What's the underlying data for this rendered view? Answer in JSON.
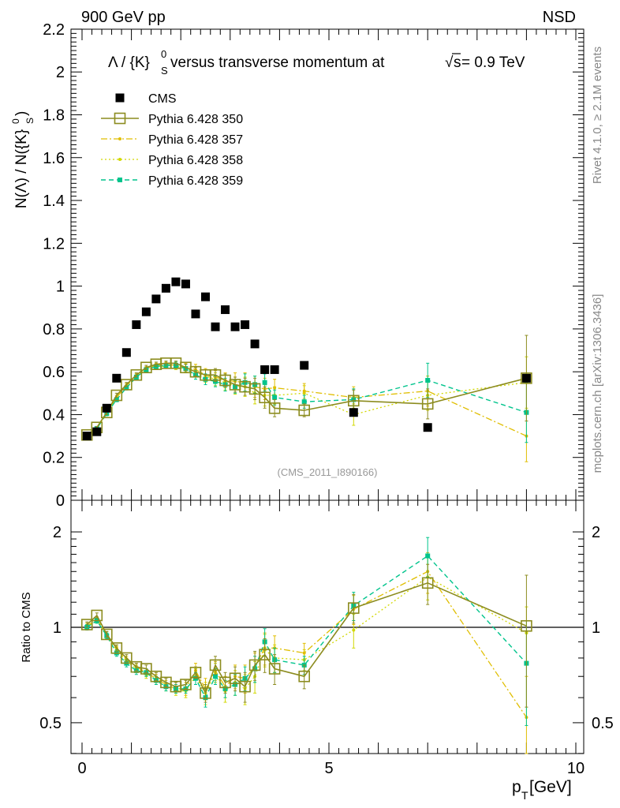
{
  "header": {
    "left_label": "900 GeV pp",
    "right_label": "NSD"
  },
  "side": {
    "rivet_label": "Rivet 4.1.0, ≥ 2.1M events",
    "mcplots_label": "mcplots.cern.ch [arXiv:1306.3436]"
  },
  "colors": {
    "cms": "#000000",
    "p350": "#8c8c1f",
    "p357": "#e0be00",
    "p358": "#d2d800",
    "p359": "#00c48c"
  },
  "chart_data": [
    {
      "type": "scatter",
      "title_parts": {
        "lam": "Λ / {K}",
        "sup": "0",
        "sub": "S",
        "mid": " versus transverse momentum at",
        "sqrt": "√",
        "s": "s",
        "end": " = 0.9 TeV"
      },
      "ylabel_parts": {
        "pre": "N(Λ)  /  N({K}",
        "sup": "0",
        "sub": "S",
        "post": ")"
      },
      "analysis_label": "(CMS_2011_I890166)",
      "xlim": [
        0,
        10
      ],
      "ylim": [
        0,
        2.2
      ],
      "yticks": [
        "0",
        "0.2",
        "0.4",
        "0.6",
        "0.8",
        "1",
        "1.2",
        "1.4",
        "1.6",
        "1.8",
        "2",
        "2.2"
      ],
      "legend": [
        {
          "key": "cms",
          "label": "CMS"
        },
        {
          "key": "p350",
          "label": "Pythia 6.428 350"
        },
        {
          "key": "p357",
          "label": "Pythia 6.428 357"
        },
        {
          "key": "p358",
          "label": "Pythia 6.428 358"
        },
        {
          "key": "p359",
          "label": "Pythia 6.428 359"
        }
      ],
      "x": [
        0.1,
        0.3,
        0.5,
        0.7,
        0.9,
        1.1,
        1.3,
        1.5,
        1.7,
        1.9,
        2.1,
        2.3,
        2.5,
        2.7,
        2.9,
        3.1,
        3.3,
        3.5,
        3.7,
        3.9,
        4.5,
        5.5,
        7.0,
        9.0
      ],
      "series": [
        {
          "key": "cms",
          "name": "CMS",
          "values": [
            0.3,
            0.32,
            0.43,
            0.57,
            0.69,
            0.82,
            0.88,
            0.94,
            0.99,
            1.02,
            1.01,
            0.87,
            0.95,
            0.81,
            0.89,
            0.81,
            0.82,
            0.73,
            0.61,
            0.61,
            0.63,
            0.41,
            0.34,
            0.57
          ]
        },
        {
          "key": "p350",
          "name": "Pythia 6.428 350",
          "values": [
            0.305,
            0.34,
            0.41,
            0.49,
            0.54,
            0.585,
            0.62,
            0.635,
            0.64,
            0.64,
            0.62,
            0.6,
            0.585,
            0.585,
            0.56,
            0.54,
            0.53,
            0.52,
            0.48,
            0.43,
            0.42,
            0.465,
            0.45,
            0.57
          ],
          "errors": [
            0.005,
            0.005,
            0.01,
            0.01,
            0.01,
            0.01,
            0.01,
            0.01,
            0.01,
            0.01,
            0.015,
            0.02,
            0.025,
            0.03,
            0.03,
            0.035,
            0.04,
            0.05,
            0.05,
            0.04,
            0.03,
            0.05,
            0.07,
            0.2
          ]
        },
        {
          "key": "p357",
          "name": "Pythia 6.428 357",
          "values": [
            0.3,
            0.335,
            0.41,
            0.48,
            0.535,
            0.58,
            0.615,
            0.63,
            0.635,
            0.63,
            0.62,
            0.61,
            0.585,
            0.575,
            0.56,
            0.555,
            0.55,
            0.53,
            0.52,
            0.525,
            0.51,
            0.48,
            0.51,
            0.3
          ],
          "errors": [
            0.005,
            0.005,
            0.01,
            0.01,
            0.01,
            0.01,
            0.01,
            0.01,
            0.01,
            0.015,
            0.02,
            0.025,
            0.03,
            0.03,
            0.035,
            0.04,
            0.045,
            0.05,
            0.05,
            0.04,
            0.035,
            0.05,
            0.07,
            0.12
          ]
        },
        {
          "key": "p358",
          "name": "Pythia 6.428 358",
          "values": [
            0.3,
            0.335,
            0.405,
            0.48,
            0.535,
            0.58,
            0.61,
            0.625,
            0.625,
            0.625,
            0.615,
            0.6,
            0.58,
            0.565,
            0.55,
            0.535,
            0.53,
            0.5,
            0.49,
            0.49,
            0.5,
            0.4,
            0.49,
            0.55
          ],
          "errors": [
            0.005,
            0.005,
            0.01,
            0.01,
            0.01,
            0.01,
            0.01,
            0.01,
            0.01,
            0.015,
            0.02,
            0.025,
            0.03,
            0.03,
            0.035,
            0.04,
            0.045,
            0.05,
            0.05,
            0.04,
            0.035,
            0.05,
            0.07,
            0.12
          ]
        },
        {
          "key": "p359",
          "name": "Pythia 6.428 359",
          "values": [
            0.3,
            0.335,
            0.405,
            0.47,
            0.525,
            0.575,
            0.61,
            0.625,
            0.63,
            0.63,
            0.615,
            0.585,
            0.565,
            0.555,
            0.54,
            0.53,
            0.55,
            0.54,
            0.55,
            0.48,
            0.46,
            0.47,
            0.56,
            0.41
          ],
          "errors": [
            0.005,
            0.005,
            0.01,
            0.01,
            0.01,
            0.01,
            0.01,
            0.01,
            0.01,
            0.015,
            0.02,
            0.02,
            0.025,
            0.025,
            0.03,
            0.03,
            0.04,
            0.04,
            0.04,
            0.035,
            0.03,
            0.05,
            0.08,
            0.14
          ]
        }
      ]
    },
    {
      "type": "scatter",
      "title": "Ratio to CMS",
      "ylabel": "Ratio to CMS",
      "xlabel_parts": {
        "p": "p",
        "sub": "T",
        "unit": " [GeV]"
      },
      "xlim": [
        0,
        10
      ],
      "ylim": [
        0.35,
        2.25
      ],
      "xticks": [
        "0",
        "5",
        "10"
      ],
      "yticks": [
        "0.5",
        "1",
        "2"
      ],
      "reference": 1,
      "x": [
        0.1,
        0.3,
        0.5,
        0.7,
        0.9,
        1.1,
        1.3,
        1.5,
        1.7,
        1.9,
        2.1,
        2.3,
        2.5,
        2.7,
        2.9,
        3.1,
        3.3,
        3.5,
        3.7,
        3.9,
        4.5,
        5.5,
        7.0,
        9.0
      ],
      "series": [
        {
          "key": "p350",
          "name": "Pythia 6.428 350",
          "values": [
            1.02,
            1.09,
            0.95,
            0.86,
            0.8,
            0.75,
            0.74,
            0.7,
            0.67,
            0.65,
            0.66,
            0.72,
            0.62,
            0.76,
            0.67,
            0.69,
            0.65,
            0.76,
            0.82,
            0.74,
            0.7,
            1.15,
            1.38,
            1.01
          ],
          "errors": [
            0.02,
            0.02,
            0.02,
            0.02,
            0.02,
            0.02,
            0.02,
            0.02,
            0.02,
            0.02,
            0.02,
            0.03,
            0.04,
            0.05,
            0.05,
            0.06,
            0.07,
            0.08,
            0.1,
            0.08,
            0.06,
            0.12,
            0.2,
            0.45
          ]
        },
        {
          "key": "p357",
          "name": "Pythia 6.428 357",
          "values": [
            1.01,
            1.06,
            0.95,
            0.86,
            0.79,
            0.75,
            0.72,
            0.69,
            0.66,
            0.64,
            0.64,
            0.73,
            0.64,
            0.73,
            0.65,
            0.7,
            0.69,
            0.75,
            0.86,
            0.86,
            0.83,
            1.14,
            1.5,
            0.52
          ],
          "errors": [
            0.02,
            0.02,
            0.02,
            0.02,
            0.02,
            0.02,
            0.02,
            0.02,
            0.02,
            0.02,
            0.03,
            0.04,
            0.05,
            0.05,
            0.05,
            0.06,
            0.07,
            0.08,
            0.1,
            0.08,
            0.06,
            0.12,
            0.22,
            0.18
          ]
        },
        {
          "key": "p358",
          "name": "Pythia 6.428 358",
          "values": [
            1.0,
            1.05,
            0.94,
            0.85,
            0.78,
            0.74,
            0.71,
            0.68,
            0.65,
            0.63,
            0.63,
            0.7,
            0.62,
            0.72,
            0.63,
            0.67,
            0.64,
            0.7,
            0.85,
            0.8,
            0.79,
            0.98,
            1.44,
            0.96
          ],
          "errors": [
            0.02,
            0.02,
            0.02,
            0.02,
            0.02,
            0.02,
            0.02,
            0.02,
            0.02,
            0.02,
            0.03,
            0.04,
            0.05,
            0.05,
            0.05,
            0.06,
            0.07,
            0.08,
            0.1,
            0.08,
            0.06,
            0.12,
            0.22,
            0.2
          ]
        },
        {
          "key": "p359",
          "name": "Pythia 6.428 359",
          "values": [
            1.0,
            1.05,
            0.94,
            0.83,
            0.77,
            0.73,
            0.72,
            0.68,
            0.65,
            0.64,
            0.64,
            0.69,
            0.6,
            0.7,
            0.64,
            0.66,
            0.69,
            0.74,
            0.9,
            0.79,
            0.76,
            1.17,
            1.68,
            0.77
          ],
          "errors": [
            0.02,
            0.02,
            0.02,
            0.02,
            0.02,
            0.02,
            0.02,
            0.02,
            0.02,
            0.02,
            0.02,
            0.03,
            0.04,
            0.04,
            0.04,
            0.05,
            0.06,
            0.07,
            0.09,
            0.07,
            0.05,
            0.12,
            0.24,
            0.28
          ]
        }
      ]
    }
  ]
}
